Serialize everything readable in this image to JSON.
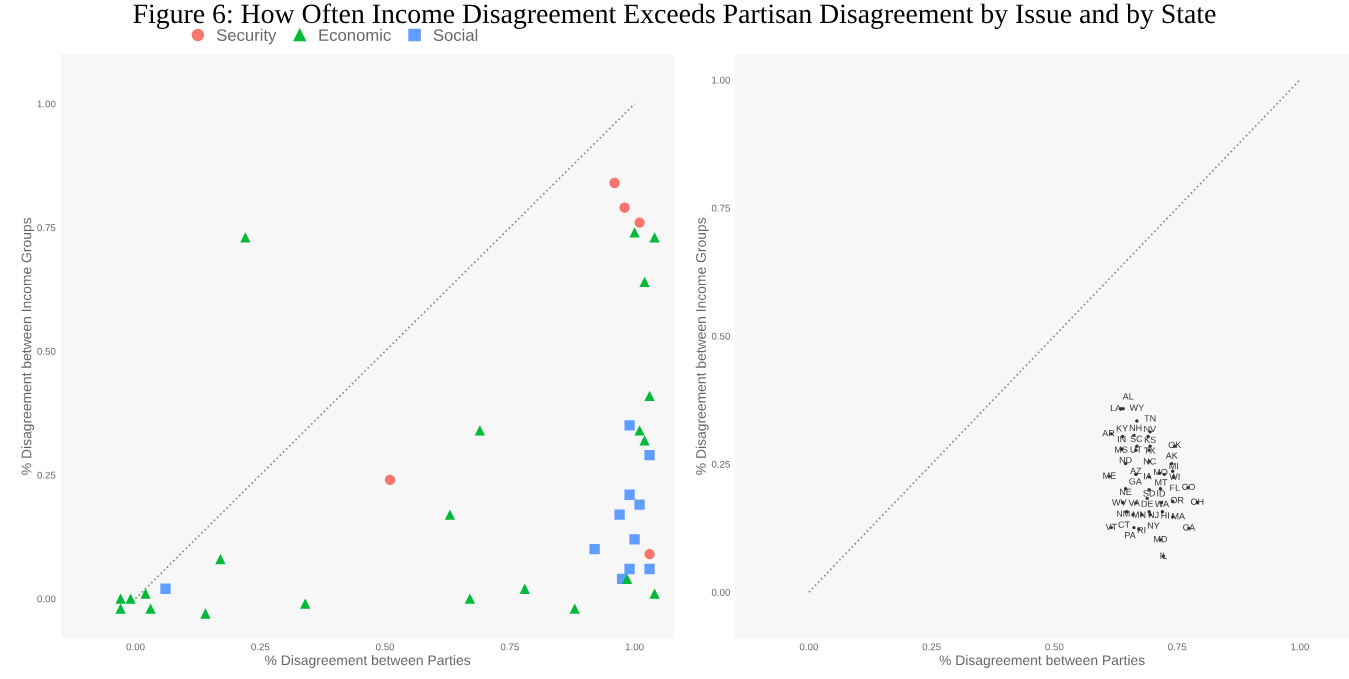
{
  "chart_data": [
    {
      "type": "scatter",
      "title": "Figure 6: How Often Income Disagreement Exceeds Partisan Disagreement by Issue and by State",
      "xlabel": "% Disagreement between Parties",
      "ylabel": "% Disagreement between Income Groups",
      "xlim": [
        -0.15,
        1.08
      ],
      "ylim": [
        -0.08,
        1.1
      ],
      "xticks": [
        {
          "value": 0,
          "label": "0.00"
        },
        {
          "value": 0.25,
          "label": "0.25"
        },
        {
          "value": 0.5,
          "label": "0.50"
        },
        {
          "value": 0.75,
          "label": "0.75"
        },
        {
          "value": 1,
          "label": "1.00"
        }
      ],
      "yticks": [
        {
          "value": 0,
          "label": "0.00"
        },
        {
          "value": 0.25,
          "label": "0.25"
        },
        {
          "value": 0.5,
          "label": "0.50"
        },
        {
          "value": 0.75,
          "label": "0.75"
        },
        {
          "value": 1,
          "label": "1.00"
        }
      ],
      "grid": false,
      "legend": "top",
      "series": [
        {
          "name": "Security",
          "color": "#f8766d",
          "marker": "circle",
          "x": [
            0.96,
            0.98,
            1.01,
            0.51,
            1.03
          ],
          "values": [
            0.84,
            0.79,
            0.76,
            0.24,
            0.09
          ]
        },
        {
          "name": "Economic",
          "color": "#00ba38",
          "marker": "triangle",
          "x": [
            0.22,
            1.0,
            1.04,
            1.02,
            1.03,
            0.69,
            1.01,
            1.02,
            0.63,
            0.17,
            0.02,
            -0.03,
            -0.01,
            -0.03,
            0.03,
            0.14,
            0.34,
            0.67,
            0.78,
            0.88,
            0.985,
            1.04
          ],
          "values": [
            0.73,
            0.74,
            0.73,
            0.64,
            0.41,
            0.34,
            0.34,
            0.32,
            0.17,
            0.08,
            0.01,
            0.0,
            0.0,
            -0.02,
            -0.02,
            -0.03,
            -0.01,
            0.0,
            0.02,
            -0.02,
            0.04,
            0.01
          ]
        },
        {
          "name": "Social",
          "color": "#619cff",
          "marker": "square",
          "x": [
            0.06,
            0.99,
            1.03,
            0.99,
            1.01,
            0.97,
            1.0,
            0.92,
            0.99,
            0.975,
            1.03
          ],
          "values": [
            0.02,
            0.35,
            0.29,
            0.21,
            0.19,
            0.17,
            0.12,
            0.1,
            0.06,
            0.04,
            0.06
          ]
        },
        {
          "type": "line",
          "color": "#888888",
          "line_style": "dotted",
          "x": [
            0,
            1
          ],
          "values": [
            0,
            1
          ]
        }
      ]
    },
    {
      "type": "scatter",
      "xlabel": "% Disagreement between Parties",
      "ylabel": "% Disagreement between Income Groups",
      "xlim": [
        -0.15,
        1.1
      ],
      "ylim": [
        -0.09,
        1.05
      ],
      "xticks": [
        {
          "value": 0,
          "label": "0.00"
        },
        {
          "value": 0.25,
          "label": "0.25"
        },
        {
          "value": 0.5,
          "label": "0.50"
        },
        {
          "value": 0.75,
          "label": "0.75"
        },
        {
          "value": 1,
          "label": "1.00"
        }
      ],
      "yticks": [
        {
          "value": 0,
          "label": "0.00"
        },
        {
          "value": 0.25,
          "label": "0.25"
        },
        {
          "value": 0.5,
          "label": "0.50"
        },
        {
          "value": 0.75,
          "label": "0.75"
        },
        {
          "value": 1,
          "label": "1.00"
        }
      ],
      "grid": false,
      "legend": false,
      "series": [
        {
          "color": "#333333",
          "marker": "circle",
          "x": [
            0.635,
            0.64,
            0.668,
            0.616,
            0.639,
            0.662,
            0.695,
            0.691,
            0.745,
            0.637,
            0.637,
            0.668,
            0.695,
            0.666,
            0.693,
            0.645,
            0.693,
            0.739,
            0.612,
            0.666,
            0.666,
            0.693,
            0.714,
            0.724,
            0.741,
            0.743,
            0.743,
            0.645,
            0.693,
            0.716,
            0.772,
            0.639,
            0.666,
            0.689,
            0.718,
            0.741,
            0.791,
            0.647,
            0.66,
            0.678,
            0.693,
            0.695,
            0.72,
            0.741,
            0.616,
            0.662,
            0.672,
            0.774,
            0.716,
            0.722
          ],
          "values": [
            0.358,
            0.358,
            0.334,
            0.309,
            0.304,
            0.306,
            0.313,
            0.304,
            0.285,
            0.279,
            0.279,
            0.285,
            0.285,
            0.277,
            0.277,
            0.251,
            0.255,
            0.251,
            0.226,
            0.23,
            0.23,
            0.225,
            0.232,
            0.23,
            0.236,
            0.225,
            0.224,
            0.202,
            0.2,
            0.202,
            0.204,
            0.175,
            0.174,
            0.183,
            0.175,
            0.177,
            0.175,
            0.157,
            0.151,
            0.151,
            0.157,
            0.151,
            0.157,
            0.147,
            0.126,
            0.126,
            0.123,
            0.125,
            0.102,
            0.07
          ],
          "value_labels": [
            "LA",
            "AL",
            "WY",
            "AR",
            "KY",
            "NH",
            "TN",
            "NV",
            "OK",
            "MS",
            "IN",
            "SC",
            "KS",
            "UT",
            "TX",
            "ND",
            "NC",
            "AK",
            "ME",
            "GA",
            "AZ",
            "IA",
            "MO",
            "MT",
            "MI",
            "WI",
            "FL",
            "NE",
            "SD",
            "ID",
            "CO",
            "WV",
            "VA",
            "DE",
            "WA",
            "OR",
            "OH",
            "NM",
            "CT",
            "MN",
            "NJ",
            "NY",
            "HI",
            "MA",
            "VT",
            "PA",
            "RI",
            "CA",
            "MD",
            "IL"
          ]
        },
        {
          "type": "line",
          "color": "#888888",
          "line_style": "dotted",
          "x": [
            0,
            1
          ],
          "values": [
            0,
            1
          ]
        }
      ]
    }
  ]
}
